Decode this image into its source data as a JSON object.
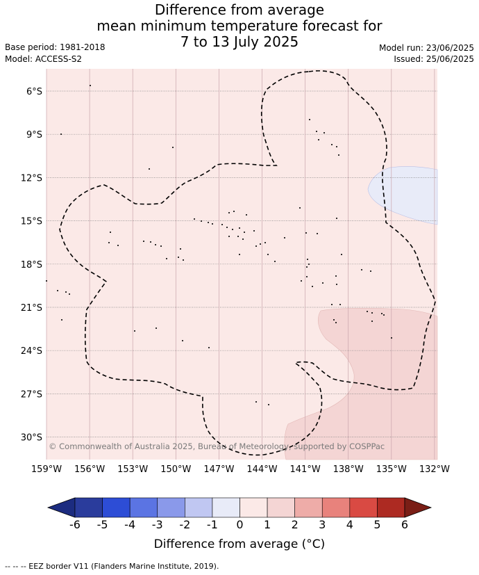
{
  "header": {
    "title_lines": [
      "Difference from average",
      "mean minimum temperature forecast for",
      "7 to 13 July 2025"
    ],
    "base_period": "Base period: 1981-2018",
    "model": "Model: ACCESS-S2",
    "model_run": "Model run: 23/06/2025",
    "issued": "Issued: 25/06/2025"
  },
  "map": {
    "copyright": "© Commonwealth of Australia 2025, Bureau of Meteorology, supported by COSPPac",
    "lat_labels": [
      "6°S",
      "9°S",
      "12°S",
      "15°S",
      "18°S",
      "21°S",
      "24°S",
      "27°S",
      "30°S"
    ],
    "lon_labels": [
      "159°W",
      "156°W",
      "153°W",
      "150°W",
      "147°W",
      "144°W",
      "141°W",
      "138°W",
      "135°W",
      "132°W"
    ],
    "colors": {
      "background_anomaly": "#fbe9e7",
      "warm_anomaly": "#f4d5d4",
      "cool_anomaly": "#e8ebf8",
      "eez_line": "#000000"
    }
  },
  "colorbar": {
    "ticks": [
      "-6",
      "-5",
      "-4",
      "-3",
      "-2",
      "-1",
      "0",
      "1",
      "2",
      "3",
      "4",
      "5",
      "6"
    ],
    "colors": [
      "#2a3c9c",
      "#2d4dd6",
      "#5b74e3",
      "#8a99ea",
      "#c0c7f2",
      "#e8ebf8",
      "#fbe9e7",
      "#f4d5d4",
      "#eeaca8",
      "#e8827c",
      "#d94a43",
      "#ad2a22"
    ],
    "low_extend": "#1c2c80",
    "high_extend": "#7a1e16",
    "label": "Difference from average (°C)"
  },
  "legend": {
    "eez": "-- -- -- EEZ border V11 (Flanders Marine Institute, 2019)."
  }
}
